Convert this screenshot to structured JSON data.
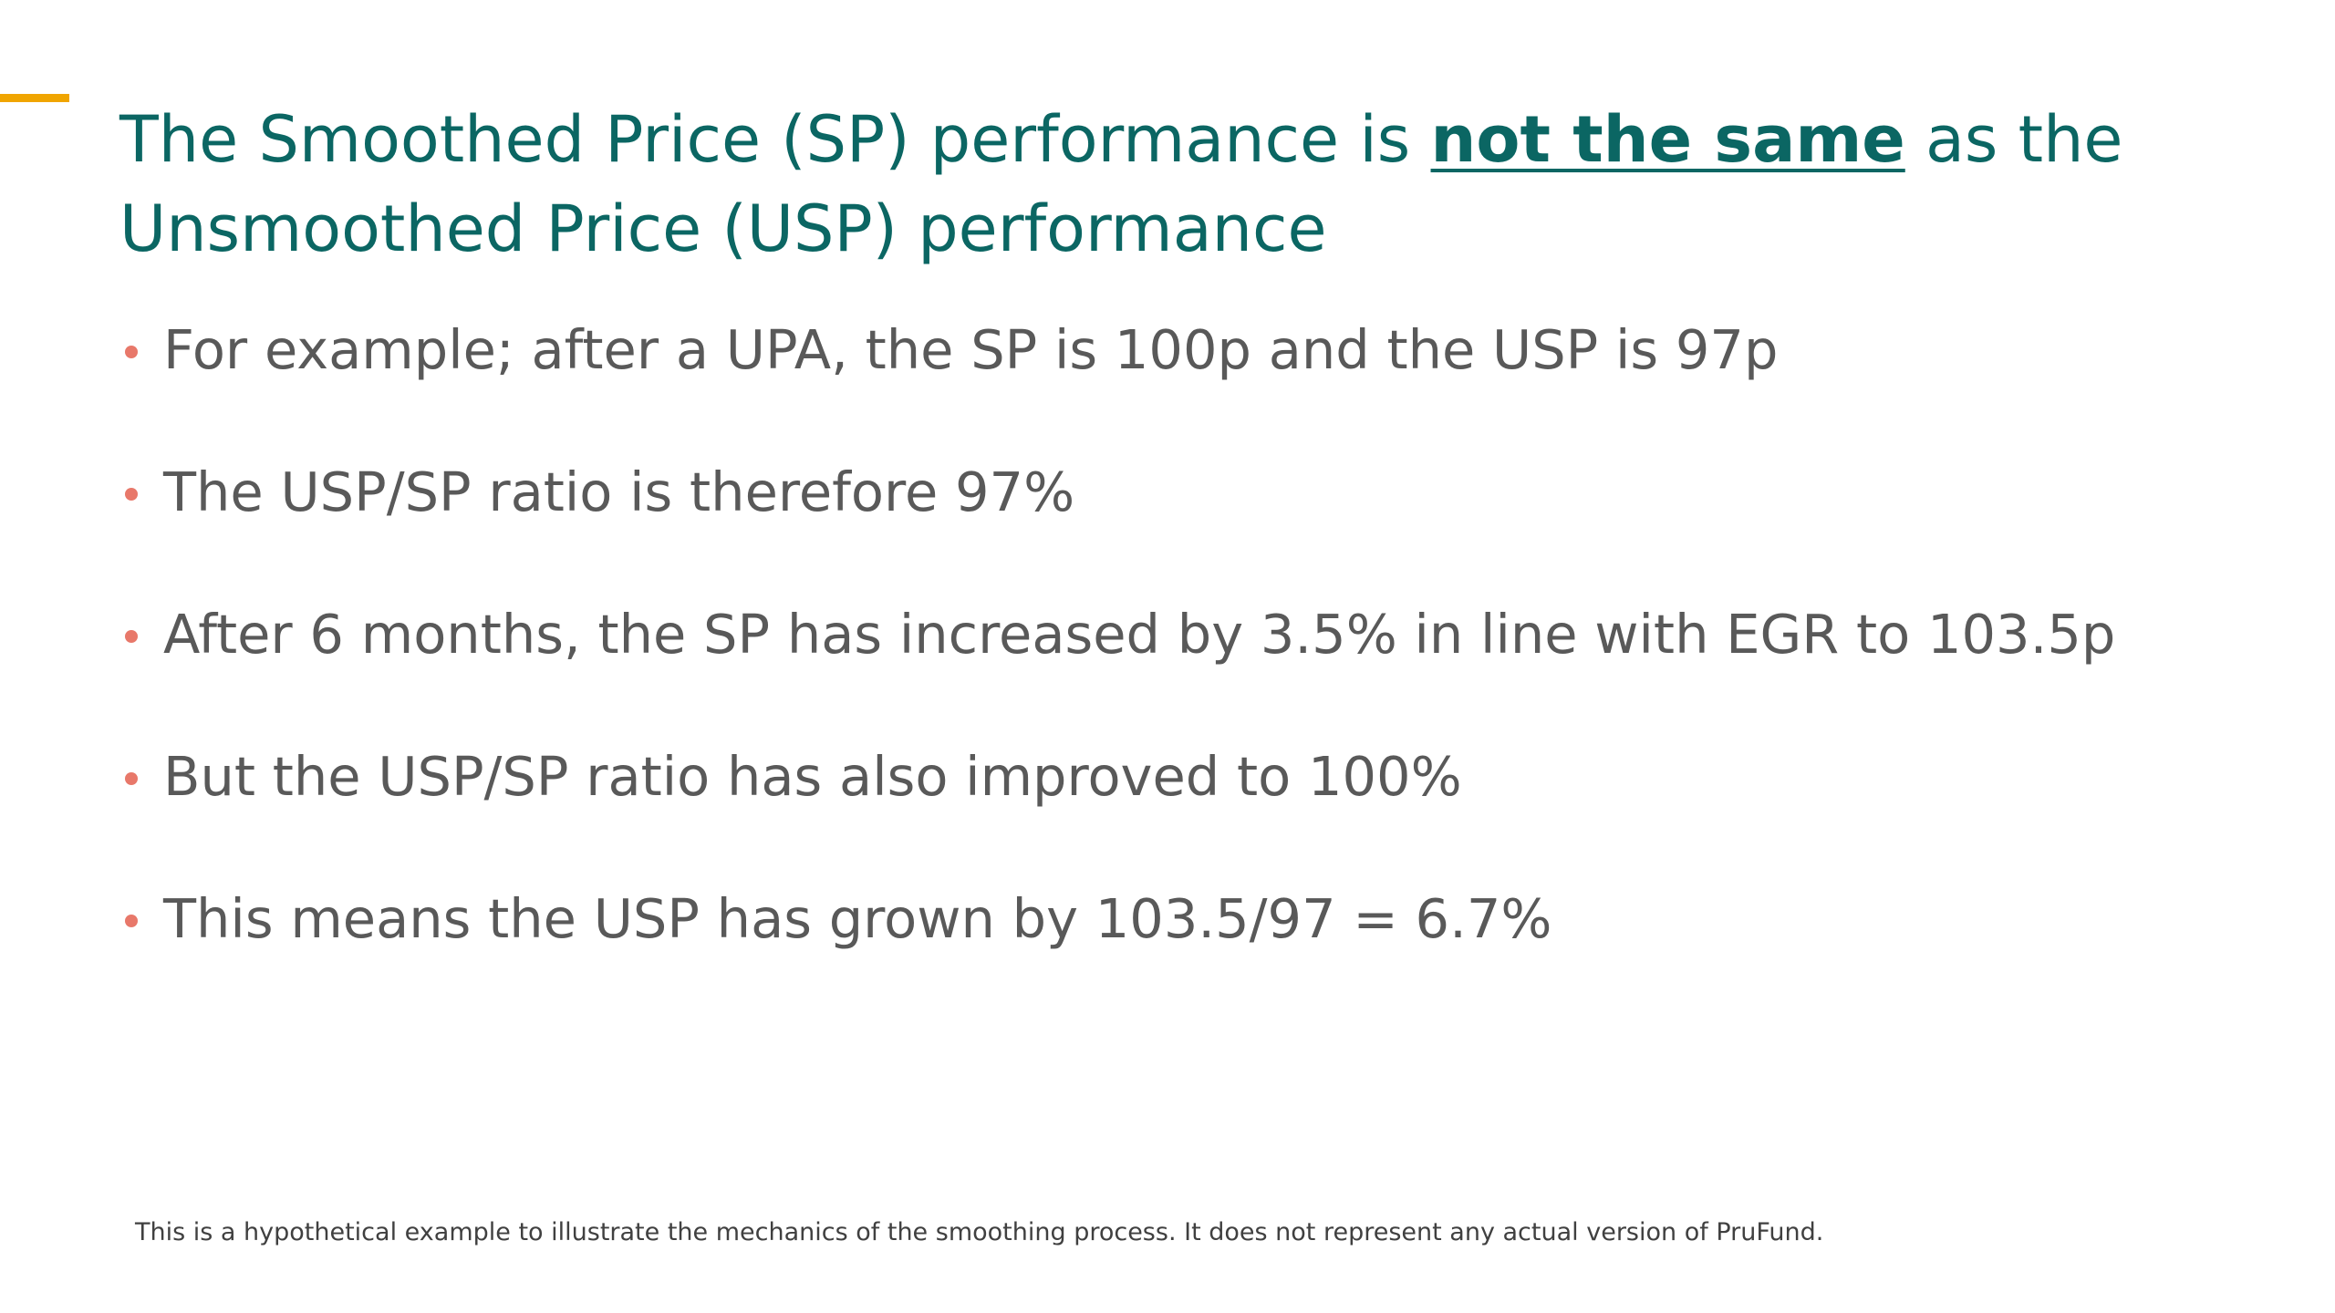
{
  "slide": {
    "title": {
      "before": "The Smoothed Price (SP) performance is ",
      "emphasis": "not the same",
      "after": " as the Unsmoothed Price (USP) performance"
    },
    "bullets": [
      "For example; after a UPA, the SP is 100p and the USP is 97p",
      "The USP/SP ratio is therefore 97%",
      "After 6 months, the SP has increased by 3.5% in line with EGR to 103.5p",
      "But the USP/SP ratio has also improved to 100%",
      "This means the USP has grown by 103.5/97 = 6.7%"
    ],
    "footnote": "This is a hypothetical example to illustrate the mechanics of the smoothing process.  It does not represent any actual version of PruFund."
  },
  "colors": {
    "accent": "#f0a500",
    "title": "#0b6663",
    "body": "#595959",
    "bullet": "#e8786a"
  }
}
